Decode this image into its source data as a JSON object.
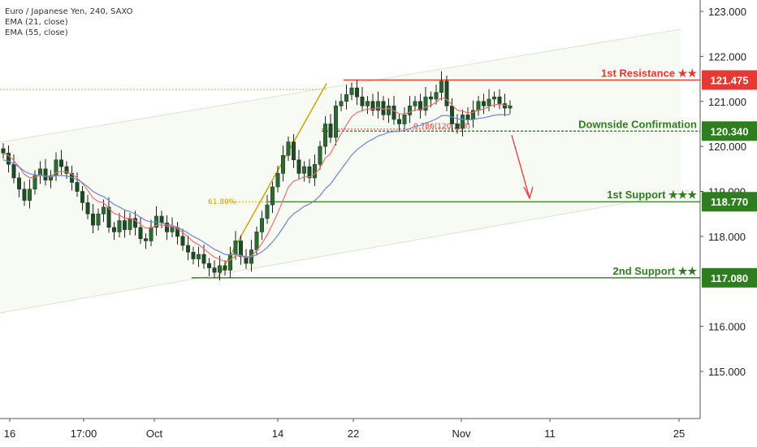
{
  "legend": {
    "symbol": "Euro / Japanese Yen, 240, SAXO",
    "ema21": "EMA (21, close)",
    "ema55": "EMA (55, close)"
  },
  "colors": {
    "resistance": "#e53935",
    "support": "#2e7d1e",
    "ema21": "#e57373",
    "ema55": "#6f86c9",
    "candle": "#2e6b34",
    "fib": "#c8a000",
    "channel": "#d8e6cf",
    "axis_text": "#222222"
  },
  "chart_data": {
    "type": "candlestick",
    "y_axis": {
      "ylim": [
        114.35,
        123.2
      ],
      "ticks": [
        "123.000",
        "122.000",
        "121.000",
        "120.000",
        "119.000",
        "118.000",
        "116.000",
        "115.000"
      ],
      "tick_values": [
        123,
        122,
        121,
        120,
        119,
        118,
        116,
        115
      ]
    },
    "x_axis": {
      "ticks": [
        "16",
        "17:00",
        "Oct",
        "14",
        "22",
        "Nov",
        "11",
        "25"
      ]
    },
    "levels": [
      {
        "label": "1st Resistance ★★",
        "value": 121.475,
        "badge": "121.475",
        "color": "resistance"
      },
      {
        "label": "Downside Confirmation",
        "value": 120.34,
        "badge": "120.340",
        "color": "support"
      },
      {
        "label": "1st Support ★★★",
        "value": 118.77,
        "badge": "118.770",
        "color": "support"
      },
      {
        "label": "2nd Support ★★",
        "value": 117.08,
        "badge": "117.080",
        "color": "support"
      }
    ],
    "fib_labels": {
      "retracement_618": "61.80%",
      "retracement_786": "0.786(120.383)"
    },
    "close_series": [
      119.85,
      119.6,
      119.3,
      119.05,
      118.8,
      119.05,
      119.35,
      119.5,
      119.25,
      119.35,
      119.7,
      119.55,
      119.4,
      119.2,
      119.0,
      118.75,
      118.5,
      118.25,
      118.5,
      118.65,
      118.2,
      118.1,
      118.35,
      118.15,
      118.4,
      118.2,
      117.95,
      117.9,
      118.2,
      118.45,
      118.3,
      118.1,
      118.2,
      118.0,
      117.8,
      117.65,
      117.5,
      117.6,
      117.4,
      117.3,
      117.2,
      117.35,
      117.25,
      117.6,
      117.9,
      117.55,
      117.4,
      117.7,
      118.1,
      118.4,
      118.7,
      119.1,
      119.4,
      119.8,
      120.1,
      119.7,
      119.4,
      119.55,
      119.3,
      119.6,
      120.0,
      120.5,
      120.2,
      120.9,
      121.0,
      121.15,
      121.3,
      121.1,
      120.9,
      121.0,
      120.8,
      121.0,
      120.7,
      120.9,
      120.6,
      120.5,
      120.7,
      120.9,
      121.0,
      120.8,
      121.1,
      121.05,
      121.2,
      121.45,
      120.9,
      120.5,
      120.4,
      120.7,
      120.6,
      120.8,
      121.0,
      120.9,
      121.05,
      121.1,
      120.95,
      120.85,
      120.9
    ]
  }
}
